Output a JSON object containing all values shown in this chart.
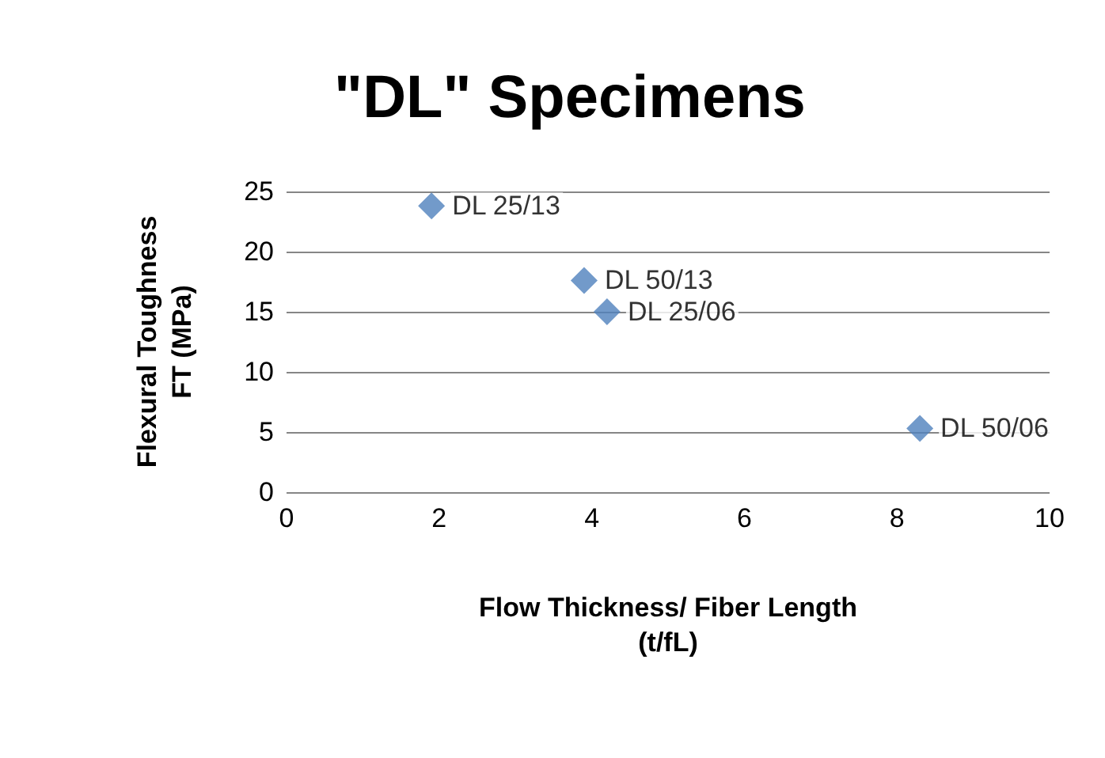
{
  "chart_data": {
    "type": "scatter",
    "title": "\"DL\" Specimens",
    "xlabel": "Flow Thickness/ Fiber Length\n(t/fL)",
    "ylabel": "Flexural Toughness\nFT (MPa)",
    "x": [
      1.9,
      3.9,
      4.2,
      8.3
    ],
    "values": [
      23.8,
      17.6,
      15.0,
      5.3
    ],
    "color": "#4f81bd",
    "marker": "diamond",
    "xlim": [
      0,
      10
    ],
    "xticks": [
      0,
      2,
      4,
      6,
      8,
      10
    ],
    "ylim": [
      0,
      25
    ],
    "yticks": [
      0,
      5,
      10,
      15,
      20,
      25
    ],
    "grid": "y",
    "annotations": [
      {
        "text": "DL 25/13",
        "x": 1.9,
        "y": 23.8
      },
      {
        "text": "DL 50/13",
        "x": 3.9,
        "y": 17.6
      },
      {
        "text": "DL 25/06",
        "x": 4.2,
        "y": 15.0
      },
      {
        "text": "DL 50/06",
        "x": 8.3,
        "y": 5.3
      }
    ]
  }
}
